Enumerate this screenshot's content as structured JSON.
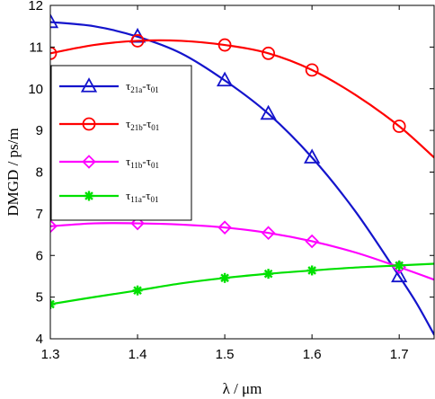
{
  "chart_data": {
    "type": "line",
    "title": "",
    "xlabel": "λ / μm",
    "ylabel": "DMGD / ps/m",
    "xlim": [
      1.3,
      1.74
    ],
    "ylim": [
      4,
      12
    ],
    "x_ticks": [
      "1.3",
      "1.4",
      "1.5",
      "1.6",
      "1.7"
    ],
    "y_ticks": [
      "4",
      "5",
      "6",
      "7",
      "8",
      "9",
      "10",
      "11",
      "12"
    ],
    "grid": false,
    "legend_position": "left, upper-middle",
    "series": [
      {
        "name": "τ21a-τ01",
        "name_main": "τ",
        "name_sub1": "21a",
        "name_mid": "-τ",
        "name_sub2": "01",
        "color": "#1414cc",
        "marker": "triangle",
        "x": [
          1.3,
          1.35,
          1.4,
          1.45,
          1.5,
          1.55,
          1.6,
          1.65,
          1.7,
          1.72,
          1.74
        ],
        "y": [
          11.6,
          11.5,
          11.25,
          10.85,
          10.2,
          9.4,
          8.35,
          7.05,
          5.5,
          4.85,
          4.1
        ],
        "marker_x": [
          1.3,
          1.4,
          1.5,
          1.55,
          1.6,
          1.7
        ],
        "marker_y": [
          11.6,
          11.25,
          10.2,
          9.4,
          8.35,
          5.5
        ]
      },
      {
        "name": "τ21b-τ01",
        "name_main": "τ",
        "name_sub1": "21b",
        "name_mid": "-τ",
        "name_sub2": "01",
        "color": "#ff0000",
        "marker": "circle",
        "x": [
          1.3,
          1.35,
          1.4,
          1.45,
          1.5,
          1.55,
          1.6,
          1.65,
          1.7,
          1.74
        ],
        "y": [
          10.85,
          11.05,
          11.15,
          11.15,
          11.05,
          10.85,
          10.45,
          9.85,
          9.1,
          8.35
        ],
        "marker_x": [
          1.3,
          1.4,
          1.5,
          1.55,
          1.6,
          1.7
        ],
        "marker_y": [
          10.85,
          11.15,
          11.05,
          10.85,
          10.45,
          9.1
        ]
      },
      {
        "name": "τ11b-τ01",
        "name_main": "τ",
        "name_sub1": "11b",
        "name_mid": "-τ",
        "name_sub2": "01",
        "color": "#ff00ff",
        "marker": "diamond",
        "x": [
          1.3,
          1.35,
          1.4,
          1.45,
          1.5,
          1.55,
          1.6,
          1.65,
          1.7,
          1.74
        ],
        "y": [
          6.7,
          6.77,
          6.77,
          6.74,
          6.67,
          6.54,
          6.34,
          6.07,
          5.72,
          5.42
        ],
        "marker_x": [
          1.3,
          1.4,
          1.5,
          1.55,
          1.6,
          1.7
        ],
        "marker_y": [
          6.7,
          6.77,
          6.67,
          6.54,
          6.34,
          5.72
        ]
      },
      {
        "name": "τ11a-τ01",
        "name_main": "τ",
        "name_sub1": "11a",
        "name_mid": "-τ",
        "name_sub2": "01",
        "color": "#00e000",
        "marker": "asterisk",
        "x": [
          1.3,
          1.35,
          1.4,
          1.45,
          1.5,
          1.55,
          1.6,
          1.65,
          1.7,
          1.74
        ],
        "y": [
          4.83,
          5.0,
          5.16,
          5.33,
          5.46,
          5.56,
          5.64,
          5.71,
          5.76,
          5.8
        ],
        "marker_x": [
          1.3,
          1.4,
          1.5,
          1.55,
          1.6,
          1.7
        ],
        "marker_y": [
          4.83,
          5.16,
          5.46,
          5.56,
          5.64,
          5.76
        ]
      }
    ]
  }
}
